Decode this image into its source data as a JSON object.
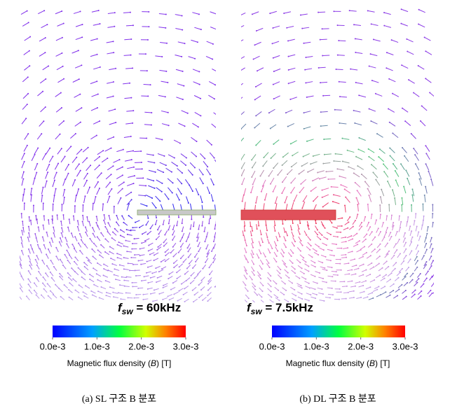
{
  "panels": [
    {
      "annotation": {
        "symbol": "f",
        "subscript": "sw",
        "text": " = 60kHz"
      },
      "colorbar": {
        "lim": [
          0,
          0.003
        ],
        "ticks": [
          {
            "value": 0,
            "label": "0.0e-3"
          },
          {
            "value": 0.001,
            "label": "1.0e-3"
          },
          {
            "value": 0.002,
            "label": "2.0e-3"
          },
          {
            "value": 0.003,
            "label": "3.0e-3"
          }
        ],
        "label_parts": [
          "Magnetic flux density (",
          "B",
          ") [T]"
        ]
      },
      "caption": "(a) SL 구조 B 분포"
    },
    {
      "annotation": {
        "symbol": "f",
        "subscript": "sw",
        "text": " = 7.5kHz"
      },
      "colorbar": {
        "lim": [
          0,
          0.003
        ],
        "ticks": [
          {
            "value": 0,
            "label": "0.0e-3"
          },
          {
            "value": 0.001,
            "label": "1.0e-3"
          },
          {
            "value": 0.002,
            "label": "2.0e-3"
          },
          {
            "value": 0.003,
            "label": "3.0e-3"
          }
        ],
        "label_parts": [
          "Magnetic flux density (",
          "B",
          ") [T]"
        ]
      },
      "caption": "(b) DL 구조 B 분포"
    }
  ]
}
